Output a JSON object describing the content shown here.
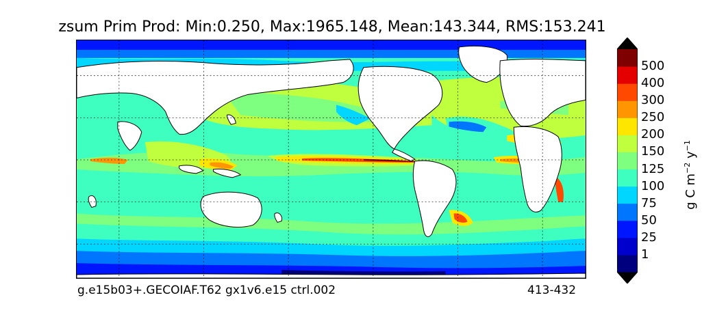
{
  "title": "zsum Prim Prod: Min:0.250, Max:1965.148, Mean:143.344, RMS:153.241",
  "footer": {
    "run_name": "g.e15b03+.GECOIAF.T62 gx1v6.e15 ctrl.002",
    "years": "413-432"
  },
  "colorbar": {
    "units_base": "g C m",
    "units_exp1": "−2",
    "units_mid": " y",
    "units_exp2": "−1",
    "levels": [
      "1",
      "25",
      "50",
      "75",
      "100",
      "125",
      "150",
      "200",
      "250",
      "300",
      "400",
      "500"
    ],
    "colors": [
      "#00007f",
      "#0000cd",
      "#0016ff",
      "#0076ff",
      "#00d6ff",
      "#3effc0",
      "#7fff7f",
      "#c0ff3e",
      "#ffe600",
      "#ff9500",
      "#ff4800",
      "#e40000",
      "#7f0000"
    ],
    "extend": "both"
  },
  "map": {
    "land_color": "#ffffff",
    "coastline_color": "#000000",
    "gridlines": "dotted"
  }
}
